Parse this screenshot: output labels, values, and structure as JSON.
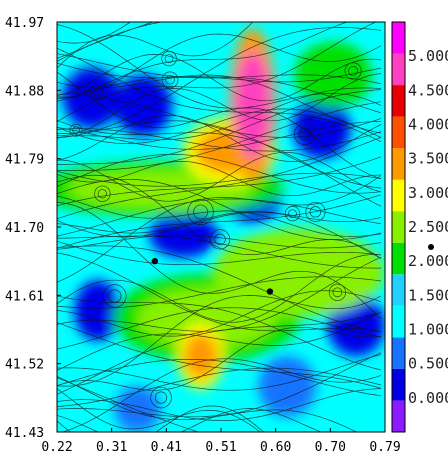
{
  "chart_data": {
    "type": "heatmap",
    "title": "",
    "xlabel": "",
    "ylabel": "",
    "xlim": [
      0.22,
      0.79
    ],
    "ylim": [
      41.43,
      41.97
    ],
    "x_ticks": [
      "0.22",
      "0.31",
      "0.41",
      "0.51",
      "0.60",
      "0.70",
      "0.79"
    ],
    "y_ticks": [
      "41.97",
      "41.88",
      "41.79",
      "41.70",
      "41.61",
      "41.52",
      "41.43"
    ],
    "colorbar": {
      "range": [
        -0.5,
        5.5
      ],
      "tick_labels": [
        "0.000",
        "0.500",
        "1.000",
        "1.500",
        "2.000",
        "2.500",
        "3.000",
        "3.500",
        "4.000",
        "4.500",
        "5.000"
      ],
      "colors": [
        "#8a1cff",
        "#0000e6",
        "#1673ff",
        "#00ffff",
        "#22d1ff",
        "#00e000",
        "#88f000",
        "#ffff00",
        "#ff9900",
        "#ff5000",
        "#e80000",
        "#ff40c0",
        "#ff00ff"
      ]
    },
    "background_level": 1.1,
    "features": [
      {
        "kind": "jet",
        "x": 0.56,
        "y": 41.86,
        "rx": 0.03,
        "ry": 0.07,
        "value": 4.6
      },
      {
        "kind": "jet",
        "x": 0.52,
        "y": 41.8,
        "rx": 0.06,
        "ry": 0.03,
        "value": 3.4
      },
      {
        "kind": "jet",
        "x": 0.4,
        "y": 41.75,
        "rx": 0.16,
        "ry": 0.025,
        "value": 2.3
      },
      {
        "kind": "jet",
        "x": 0.64,
        "y": 41.64,
        "rx": 0.11,
        "ry": 0.04,
        "value": 2.5
      },
      {
        "kind": "jet",
        "x": 0.48,
        "y": 41.58,
        "rx": 0.12,
        "ry": 0.04,
        "value": 2.4
      },
      {
        "kind": "jet",
        "x": 0.47,
        "y": 41.53,
        "rx": 0.03,
        "ry": 0.03,
        "value": 3.6
      },
      {
        "kind": "jet",
        "x": 0.7,
        "y": 41.9,
        "rx": 0.05,
        "ry": 0.03,
        "value": 2.2
      },
      {
        "kind": "calm",
        "x": 0.28,
        "y": 41.87,
        "rx": 0.05,
        "ry": 0.04,
        "value": 0.2
      },
      {
        "kind": "calm",
        "x": 0.37,
        "y": 41.86,
        "rx": 0.05,
        "ry": 0.04,
        "value": 0.3
      },
      {
        "kind": "calm",
        "x": 0.68,
        "y": 41.83,
        "rx": 0.05,
        "ry": 0.04,
        "value": 0.3
      },
      {
        "kind": "calm",
        "x": 0.44,
        "y": 41.69,
        "rx": 0.06,
        "ry": 0.03,
        "value": 0.4
      },
      {
        "kind": "calm",
        "x": 0.56,
        "y": 41.74,
        "rx": 0.05,
        "ry": 0.035,
        "value": 0.3
      },
      {
        "kind": "calm",
        "x": 0.29,
        "y": 41.59,
        "rx": 0.04,
        "ry": 0.04,
        "value": 0.4
      },
      {
        "kind": "calm",
        "x": 0.74,
        "y": 41.57,
        "rx": 0.05,
        "ry": 0.04,
        "value": 0.4
      },
      {
        "kind": "calm",
        "x": 0.62,
        "y": 41.49,
        "rx": 0.05,
        "ry": 0.04,
        "value": 0.5
      },
      {
        "kind": "calm",
        "x": 0.36,
        "y": 41.46,
        "rx": 0.04,
        "ry": 0.03,
        "value": 0.6
      }
    ],
    "markers": [
      {
        "x": 0.39,
        "y": 41.655
      },
      {
        "x": 0.59,
        "y": 41.615
      }
    ]
  }
}
